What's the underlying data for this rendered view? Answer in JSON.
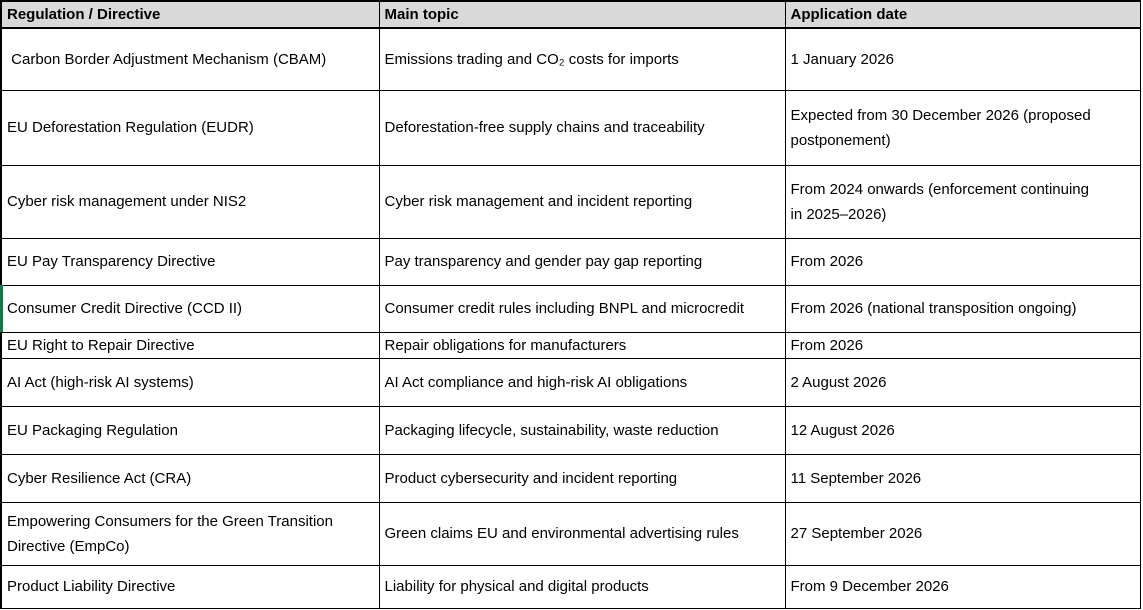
{
  "table": {
    "columns": [
      "Regulation / Directive",
      "Main topic",
      "Application date"
    ],
    "rows": [
      {
        "regulation": " Carbon Border Adjustment Mechanism (CBAM)",
        "topic": "Emissions trading and CO₂ costs for imports",
        "date": "1 January 2026"
      },
      {
        "regulation": "EU Deforestation Regulation (EUDR)",
        "topic": "Deforestation-free supply chains and traceability",
        "date": "Expected from 30 December 2026 (proposed\npostponement)"
      },
      {
        "regulation": "Cyber risk management under NIS2",
        "topic": "Cyber risk management and incident reporting",
        "date": "From 2024 onwards (enforcement continuing\nin 2025–2026)"
      },
      {
        "regulation": "EU Pay Transparency Directive",
        "topic": "Pay transparency and gender pay gap reporting",
        "date": "From 2026"
      },
      {
        "regulation": "Consumer Credit Directive (CCD II)",
        "topic": "Consumer credit rules including BNPL and microcredit",
        "date": "From 2026 (national transposition ongoing)"
      },
      {
        "regulation": "EU Right to Repair Directive",
        "topic": "Repair obligations for manufacturers",
        "date": "From 2026"
      },
      {
        "regulation": "AI Act (high-risk AI systems)",
        "topic": "AI Act compliance and high-risk AI obligations",
        "date": "2 August 2026"
      },
      {
        "regulation": "EU Packaging Regulation",
        "topic": "Packaging lifecycle, sustainability, waste reduction",
        "date": "12 August 2026"
      },
      {
        "regulation": "Cyber Resilience Act (CRA)",
        "topic": "Product cybersecurity and incident reporting",
        "date": "11 September 2026"
      },
      {
        "regulation": "Empowering Consumers for the Green Transition\nDirective (EmpCo)",
        "topic": "Green claims EU and environmental advertising rules",
        "date": "27 September 2026"
      },
      {
        "regulation": "Product Liability Directive",
        "topic": "Liability for physical and digital products",
        "date": "From 9 December 2026"
      }
    ],
    "selection": {
      "row_index": 4
    },
    "colors": {
      "header_bg": "#D9D9D9",
      "border": "#000000",
      "text": "#000000",
      "selection_green": "#1E7346"
    }
  }
}
